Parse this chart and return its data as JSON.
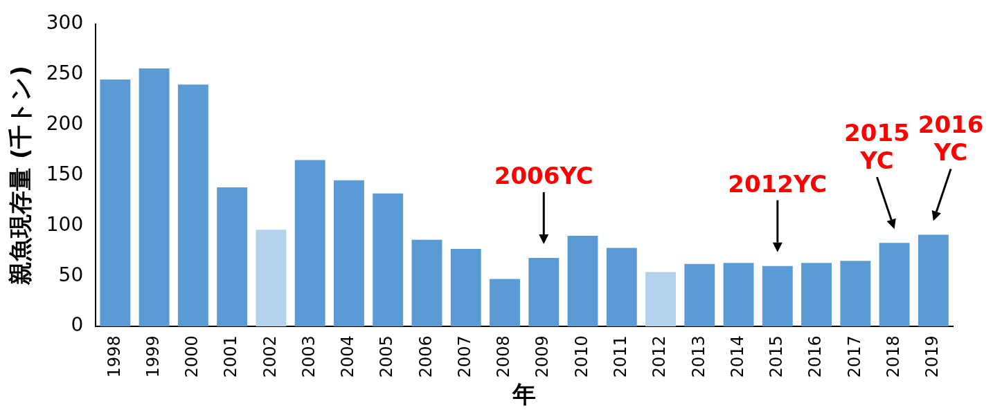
{
  "chart_data": {
    "type": "bar",
    "xlabel": "年",
    "ylabel": "親魚現存量 (千トン)",
    "categories": [
      "1998",
      "1999",
      "2000",
      "2001",
      "2002",
      "2003",
      "2004",
      "2005",
      "2006",
      "2007",
      "2008",
      "2009",
      "2010",
      "2011",
      "2012",
      "2013",
      "2014",
      "2015",
      "2016",
      "2017",
      "2018",
      "2019"
    ],
    "values": [
      245,
      256,
      240,
      138,
      96,
      165,
      145,
      132,
      86,
      77,
      47,
      68,
      90,
      78,
      54,
      62,
      63,
      60,
      63,
      65,
      83,
      91
    ],
    "colors": [
      "#5b9bd5",
      "#5b9bd5",
      "#5b9bd5",
      "#5b9bd5",
      "#b4d2ee",
      "#5b9bd5",
      "#5b9bd5",
      "#5b9bd5",
      "#5b9bd5",
      "#5b9bd5",
      "#5b9bd5",
      "#5b9bd5",
      "#5b9bd5",
      "#5b9bd5",
      "#b4d2ee",
      "#5b9bd5",
      "#5b9bd5",
      "#5b9bd5",
      "#5b9bd5",
      "#5b9bd5",
      "#5b9bd5",
      "#5b9bd5"
    ],
    "ylim": [
      0,
      300
    ],
    "yticks": [
      0,
      50,
      100,
      150,
      200,
      250,
      300
    ],
    "grid": false,
    "legend": false,
    "annotations": [
      {
        "text": "2006YC",
        "x": "2009",
        "y": 68
      },
      {
        "text": "2012YC",
        "x": "2015",
        "y": 60
      },
      {
        "text": "2015 YC",
        "x": "2018",
        "y": 83
      },
      {
        "text": "2016 YC",
        "x": "2019",
        "y": 91
      }
    ]
  }
}
